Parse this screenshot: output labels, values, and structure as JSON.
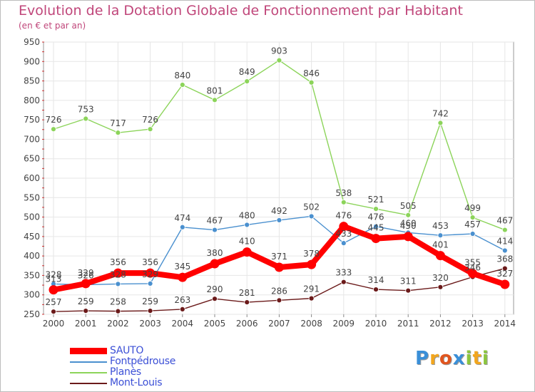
{
  "header": {
    "title": "Evolution de la Dotation Globale de Fonctionnement par Habitant",
    "subtitle": "(en € et par an)"
  },
  "brand": {
    "text": "Proxiti",
    "letters": [
      {
        "ch": "P",
        "color": "#3a8fd8"
      },
      {
        "ch": "r",
        "color": "#f2a61e"
      },
      {
        "ch": "o",
        "color": "#e0551f"
      },
      {
        "ch": "x",
        "color": "#3a8fd8"
      },
      {
        "ch": "i",
        "color": "#8cc63f"
      },
      {
        "ch": "t",
        "color": "#f2a61e"
      },
      {
        "ch": "i",
        "color": "#8cc63f"
      }
    ]
  },
  "chart_data": {
    "type": "line",
    "title": "Evolution de la Dotation Globale de Fonctionnement par Habitant",
    "subtitle": "(en € et par an)",
    "x": [
      "2000",
      "2001",
      "2002",
      "2003",
      "2004",
      "2005",
      "2006",
      "2007",
      "2008",
      "2009",
      "2010",
      "2011",
      "2012",
      "2013",
      "2014"
    ],
    "ylim": [
      250,
      950
    ],
    "yticks": [
      250,
      300,
      350,
      400,
      450,
      500,
      550,
      600,
      650,
      700,
      750,
      800,
      850,
      900,
      950
    ],
    "grid": true,
    "legend_position": "bottom-left",
    "series": [
      {
        "name": "SAUTO",
        "color": "#ff0000",
        "values": [
          313,
          329,
          356,
          356,
          345,
          380,
          410,
          371,
          378,
          476,
          445,
          450,
          401,
          355,
          327
        ]
      },
      {
        "name": "Fontpédrouse",
        "color": "#4a90cf",
        "values": [
          328,
          326,
          328,
          329,
          474,
          467,
          480,
          492,
          502,
          433,
          476,
          460,
          453,
          457,
          414
        ]
      },
      {
        "name": "Planès",
        "color": "#8cd45a",
        "values": [
          726,
          753,
          717,
          726,
          840,
          801,
          849,
          903,
          846,
          538,
          521,
          505,
          742,
          499,
          467
        ]
      },
      {
        "name": "Mont-Louis",
        "color": "#6b1a1a",
        "values": [
          257,
          259,
          258,
          259,
          263,
          290,
          281,
          286,
          291,
          333,
          314,
          311,
          320,
          346,
          368
        ]
      }
    ]
  }
}
